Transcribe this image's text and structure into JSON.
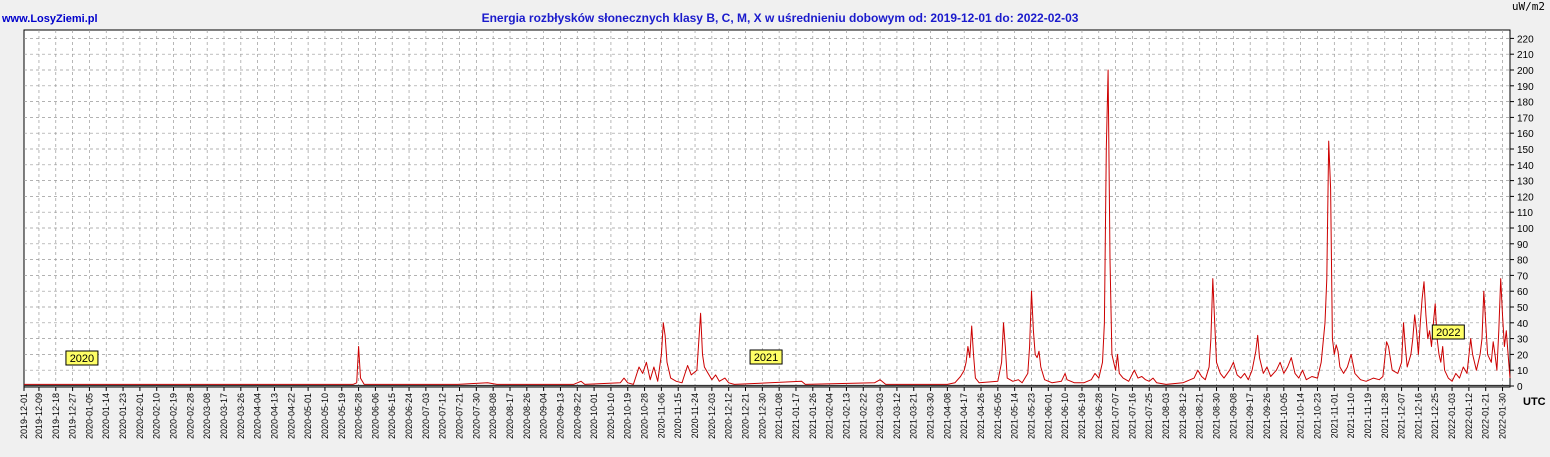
{
  "header": {
    "site": "www.LosyZiemi.pl",
    "title": "Energia rozbłysków słonecznych klasy B, C, M, X w uśrednieniu dobowym od: 2019-12-01 do: 2022-02-03",
    "unit": "uW/m2",
    "utc": "UTC"
  },
  "colors": {
    "background": "#f0f0f0",
    "plot": "#ffffff",
    "series": "#cc0000",
    "grid": "#999999",
    "title": "#1a1acc",
    "year_label_bg": "#ffff66"
  },
  "year_labels": [
    {
      "text": "2020",
      "date": "2020-01-01"
    },
    {
      "text": "2021",
      "date": "2021-01-01"
    },
    {
      "text": "2022",
      "date": "2022-01-01"
    }
  ],
  "chart_data": {
    "type": "line",
    "title": "Energia rozbłysków słonecznych klasy B, C, M, X w uśrednieniu dobowym od: 2019-12-01 do: 2022-02-03",
    "ylabel": "uW/m2",
    "xlabel": "UTC",
    "xlim": [
      "2019-12-01",
      "2022-02-03"
    ],
    "ylim": [
      0,
      225
    ],
    "y_ticks": [
      0,
      10,
      20,
      30,
      40,
      50,
      60,
      70,
      80,
      90,
      100,
      110,
      120,
      130,
      140,
      150,
      160,
      170,
      180,
      190,
      200,
      210,
      220
    ],
    "grid": true,
    "x_ticks": [
      "2019-12-01",
      "2019-12-09",
      "2019-12-18",
      "2019-12-27",
      "2020-01-05",
      "2020-01-14",
      "2020-01-23",
      "2020-02-01",
      "2020-02-10",
      "2020-02-19",
      "2020-02-28",
      "2020-03-08",
      "2020-03-17",
      "2020-03-26",
      "2020-04-04",
      "2020-04-13",
      "2020-04-22",
      "2020-05-01",
      "2020-05-10",
      "2020-05-19",
      "2020-05-28",
      "2020-06-06",
      "2020-06-15",
      "2020-06-24",
      "2020-07-03",
      "2020-07-12",
      "2020-07-21",
      "2020-07-30",
      "2020-08-08",
      "2020-08-17",
      "2020-08-26",
      "2020-09-04",
      "2020-09-13",
      "2020-09-22",
      "2020-10-01",
      "2020-10-10",
      "2020-10-19",
      "2020-10-28",
      "2020-11-06",
      "2020-11-15",
      "2020-11-24",
      "2020-12-03",
      "2020-12-12",
      "2020-12-21",
      "2020-12-30",
      "2021-01-08",
      "2021-01-17",
      "2021-01-26",
      "2021-02-04",
      "2021-02-13",
      "2021-02-22",
      "2021-03-03",
      "2021-03-12",
      "2021-03-21",
      "2021-03-30",
      "2021-04-08",
      "2021-04-17",
      "2021-04-26",
      "2021-05-05",
      "2021-05-14",
      "2021-05-23",
      "2021-06-01",
      "2021-06-10",
      "2021-06-19",
      "2021-06-28",
      "2021-07-07",
      "2021-07-16",
      "2021-07-25",
      "2021-08-03",
      "2021-08-12",
      "2021-08-21",
      "2021-08-30",
      "2021-09-08",
      "2021-09-17",
      "2021-09-26",
      "2021-10-05",
      "2021-10-14",
      "2021-10-23",
      "2021-11-01",
      "2021-11-10",
      "2021-11-19",
      "2021-11-28",
      "2021-12-07",
      "2021-12-16",
      "2021-12-25",
      "2022-01-03",
      "2022-01-12",
      "2022-01-21",
      "2022-01-30"
    ],
    "series": [
      {
        "color": "#cc0000",
        "points": [
          [
            "2019-12-01",
            1
          ],
          [
            "2020-02-15",
            1
          ],
          [
            "2020-04-20",
            1
          ],
          [
            "2020-05-25",
            1
          ],
          [
            "2020-05-27",
            2
          ],
          [
            "2020-05-28",
            25
          ],
          [
            "2020-05-29",
            5
          ],
          [
            "2020-05-31",
            1
          ],
          [
            "2020-07-20",
            1
          ],
          [
            "2020-08-05",
            2
          ],
          [
            "2020-08-10",
            1
          ],
          [
            "2020-09-20",
            1
          ],
          [
            "2020-09-24",
            3
          ],
          [
            "2020-09-26",
            1
          ],
          [
            "2020-10-15",
            2
          ],
          [
            "2020-10-17",
            5
          ],
          [
            "2020-10-19",
            2
          ],
          [
            "2020-10-22",
            1
          ],
          [
            "2020-10-25",
            12
          ],
          [
            "2020-10-27",
            8
          ],
          [
            "2020-10-29",
            15
          ],
          [
            "2020-10-31",
            4
          ],
          [
            "2020-11-02",
            12
          ],
          [
            "2020-11-04",
            3
          ],
          [
            "2020-11-06",
            20
          ],
          [
            "2020-11-07",
            40
          ],
          [
            "2020-11-08",
            32
          ],
          [
            "2020-11-09",
            15
          ],
          [
            "2020-11-11",
            5
          ],
          [
            "2020-11-14",
            3
          ],
          [
            "2020-11-17",
            2
          ],
          [
            "2020-11-20",
            13
          ],
          [
            "2020-11-22",
            7
          ],
          [
            "2020-11-25",
            10
          ],
          [
            "2020-11-27",
            46
          ],
          [
            "2020-11-28",
            20
          ],
          [
            "2020-11-29",
            12
          ],
          [
            "2020-12-01",
            8
          ],
          [
            "2020-12-03",
            4
          ],
          [
            "2020-12-05",
            7
          ],
          [
            "2020-12-07",
            3
          ],
          [
            "2020-12-10",
            5
          ],
          [
            "2020-12-12",
            2
          ],
          [
            "2020-12-15",
            1
          ],
          [
            "2021-01-20",
            3
          ],
          [
            "2021-01-22",
            1
          ],
          [
            "2021-02-28",
            2
          ],
          [
            "2021-03-03",
            4
          ],
          [
            "2021-03-06",
            1
          ],
          [
            "2021-04-08",
            1
          ],
          [
            "2021-04-12",
            2
          ],
          [
            "2021-04-15",
            6
          ],
          [
            "2021-04-17",
            10
          ],
          [
            "2021-04-18",
            15
          ],
          [
            "2021-04-19",
            25
          ],
          [
            "2021-04-20",
            18
          ],
          [
            "2021-04-21",
            38
          ],
          [
            "2021-04-22",
            20
          ],
          [
            "2021-04-23",
            5
          ],
          [
            "2021-04-25",
            2
          ],
          [
            "2021-05-05",
            3
          ],
          [
            "2021-05-07",
            15
          ],
          [
            "2021-05-08",
            40
          ],
          [
            "2021-05-09",
            25
          ],
          [
            "2021-05-10",
            5
          ],
          [
            "2021-05-13",
            3
          ],
          [
            "2021-05-16",
            4
          ],
          [
            "2021-05-18",
            2
          ],
          [
            "2021-05-21",
            8
          ],
          [
            "2021-05-22",
            25
          ],
          [
            "2021-05-23",
            60
          ],
          [
            "2021-05-24",
            35
          ],
          [
            "2021-05-25",
            20
          ],
          [
            "2021-05-26",
            18
          ],
          [
            "2021-05-27",
            22
          ],
          [
            "2021-05-28",
            12
          ],
          [
            "2021-05-30",
            4
          ],
          [
            "2021-06-03",
            2
          ],
          [
            "2021-06-08",
            3
          ],
          [
            "2021-06-10",
            8
          ],
          [
            "2021-06-11",
            4
          ],
          [
            "2021-06-15",
            2
          ],
          [
            "2021-06-20",
            2
          ],
          [
            "2021-06-24",
            4
          ],
          [
            "2021-06-26",
            8
          ],
          [
            "2021-06-28",
            5
          ],
          [
            "2021-06-30",
            15
          ],
          [
            "2021-07-01",
            40
          ],
          [
            "2021-07-02",
            150
          ],
          [
            "2021-07-03",
            200
          ],
          [
            "2021-07-04",
            80
          ],
          [
            "2021-07-05",
            20
          ],
          [
            "2021-07-06",
            15
          ],
          [
            "2021-07-07",
            10
          ],
          [
            "2021-07-08",
            20
          ],
          [
            "2021-07-09",
            8
          ],
          [
            "2021-07-11",
            5
          ],
          [
            "2021-07-14",
            3
          ],
          [
            "2021-07-17",
            10
          ],
          [
            "2021-07-19",
            5
          ],
          [
            "2021-07-21",
            6
          ],
          [
            "2021-07-23",
            4
          ],
          [
            "2021-07-25",
            3
          ],
          [
            "2021-07-27",
            5
          ],
          [
            "2021-07-29",
            2
          ],
          [
            "2021-08-03",
            1
          ],
          [
            "2021-08-12",
            2
          ],
          [
            "2021-08-18",
            5
          ],
          [
            "2021-08-20",
            10
          ],
          [
            "2021-08-22",
            6
          ],
          [
            "2021-08-24",
            4
          ],
          [
            "2021-08-26",
            12
          ],
          [
            "2021-08-27",
            30
          ],
          [
            "2021-08-28",
            68
          ],
          [
            "2021-08-29",
            40
          ],
          [
            "2021-08-30",
            15
          ],
          [
            "2021-09-01",
            8
          ],
          [
            "2021-09-03",
            5
          ],
          [
            "2021-09-06",
            10
          ],
          [
            "2021-09-08",
            15
          ],
          [
            "2021-09-10",
            7
          ],
          [
            "2021-09-12",
            5
          ],
          [
            "2021-09-14",
            8
          ],
          [
            "2021-09-16",
            4
          ],
          [
            "2021-09-18",
            10
          ],
          [
            "2021-09-20",
            22
          ],
          [
            "2021-09-21",
            32
          ],
          [
            "2021-09-22",
            18
          ],
          [
            "2021-09-24",
            8
          ],
          [
            "2021-09-26",
            12
          ],
          [
            "2021-09-28",
            6
          ],
          [
            "2021-10-01",
            10
          ],
          [
            "2021-10-03",
            15
          ],
          [
            "2021-10-05",
            8
          ],
          [
            "2021-10-07",
            12
          ],
          [
            "2021-10-09",
            18
          ],
          [
            "2021-10-11",
            8
          ],
          [
            "2021-10-13",
            5
          ],
          [
            "2021-10-15",
            10
          ],
          [
            "2021-10-17",
            4
          ],
          [
            "2021-10-20",
            6
          ],
          [
            "2021-10-23",
            5
          ],
          [
            "2021-10-25",
            15
          ],
          [
            "2021-10-27",
            40
          ],
          [
            "2021-10-28",
            68
          ],
          [
            "2021-10-29",
            155
          ],
          [
            "2021-10-30",
            125
          ],
          [
            "2021-10-31",
            30
          ],
          [
            "2021-11-01",
            20
          ],
          [
            "2021-11-02",
            26
          ],
          [
            "2021-11-03",
            22
          ],
          [
            "2021-11-04",
            12
          ],
          [
            "2021-11-06",
            8
          ],
          [
            "2021-11-08",
            12
          ],
          [
            "2021-11-10",
            20
          ],
          [
            "2021-11-12",
            8
          ],
          [
            "2021-11-15",
            4
          ],
          [
            "2021-11-18",
            3
          ],
          [
            "2021-11-22",
            5
          ],
          [
            "2021-11-25",
            4
          ],
          [
            "2021-11-27",
            6
          ],
          [
            "2021-11-29",
            28
          ],
          [
            "2021-11-30",
            25
          ],
          [
            "2021-12-02",
            10
          ],
          [
            "2021-12-05",
            8
          ],
          [
            "2021-12-07",
            15
          ],
          [
            "2021-12-08",
            40
          ],
          [
            "2021-12-09",
            25
          ],
          [
            "2021-12-10",
            12
          ],
          [
            "2021-12-12",
            20
          ],
          [
            "2021-12-13",
            30
          ],
          [
            "2021-12-14",
            45
          ],
          [
            "2021-12-15",
            35
          ],
          [
            "2021-12-16",
            20
          ],
          [
            "2021-12-17",
            40
          ],
          [
            "2021-12-18",
            55
          ],
          [
            "2021-12-19",
            66
          ],
          [
            "2021-12-20",
            45
          ],
          [
            "2021-12-21",
            30
          ],
          [
            "2021-12-22",
            35
          ],
          [
            "2021-12-23",
            25
          ],
          [
            "2021-12-24",
            40
          ],
          [
            "2021-12-25",
            52
          ],
          [
            "2021-12-26",
            30
          ],
          [
            "2021-12-27",
            20
          ],
          [
            "2021-12-28",
            15
          ],
          [
            "2021-12-29",
            25
          ],
          [
            "2021-12-30",
            10
          ],
          [
            "2022-01-01",
            5
          ],
          [
            "2022-01-03",
            3
          ],
          [
            "2022-01-05",
            8
          ],
          [
            "2022-01-07",
            5
          ],
          [
            "2022-01-09",
            12
          ],
          [
            "2022-01-11",
            8
          ],
          [
            "2022-01-13",
            30
          ],
          [
            "2022-01-14",
            20
          ],
          [
            "2022-01-16",
            10
          ],
          [
            "2022-01-18",
            20
          ],
          [
            "2022-01-19",
            30
          ],
          [
            "2022-01-20",
            60
          ],
          [
            "2022-01-21",
            40
          ],
          [
            "2022-01-22",
            20
          ],
          [
            "2022-01-24",
            15
          ],
          [
            "2022-01-25",
            28
          ],
          [
            "2022-01-26",
            20
          ],
          [
            "2022-01-27",
            10
          ],
          [
            "2022-01-28",
            35
          ],
          [
            "2022-01-29",
            68
          ],
          [
            "2022-01-30",
            45
          ],
          [
            "2022-01-31",
            25
          ],
          [
            "2022-02-01",
            35
          ],
          [
            "2022-02-02",
            20
          ],
          [
            "2022-02-03",
            5
          ]
        ]
      }
    ]
  }
}
